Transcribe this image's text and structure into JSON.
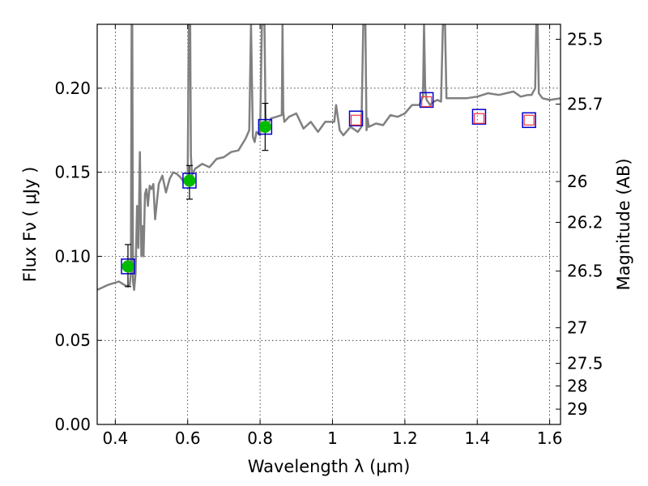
{
  "chart_data": {
    "type": "line",
    "title": "",
    "xlabel": "Wavelength  λ (μm)",
    "ylabel": "Flux  Fν  ( μJy )",
    "ylabel_right": "Magnitude (AB)",
    "xlim": [
      0.35,
      1.63
    ],
    "ylim": [
      0.0,
      0.238
    ],
    "grid": true,
    "x_ticks": [
      0.4,
      0.6,
      0.8,
      1.0,
      1.2,
      1.4,
      1.6
    ],
    "x_tick_labels": [
      "0.4",
      "0.6",
      "0.8",
      "1",
      "1.2",
      "1.4",
      "1.6"
    ],
    "y_ticks": [
      0.0,
      0.05,
      0.1,
      0.15,
      0.2
    ],
    "y_tick_labels": [
      "0.00",
      "0.05",
      "0.10",
      "0.15",
      "0.20"
    ],
    "right_ticks": [
      {
        "label": "25.5",
        "flux": 0.2291
      },
      {
        "label": "25.7",
        "flux": 0.1905
      },
      {
        "label": "26",
        "flux": 0.1445
      },
      {
        "label": "26.2",
        "flux": 0.1202
      },
      {
        "label": "26.5",
        "flux": 0.0912
      },
      {
        "label": "27",
        "flux": 0.0575
      },
      {
        "label": "27.5",
        "flux": 0.0363
      },
      {
        "label": "28",
        "flux": 0.0229
      },
      {
        "label": "29",
        "flux": 0.0091
      }
    ],
    "series": [
      {
        "name": "",
        "type": "line",
        "color": "#808080",
        "x": [
          0.35,
          0.38,
          0.41,
          0.425,
          0.435,
          0.44,
          0.443,
          0.445,
          0.447,
          0.449,
          0.452,
          0.456,
          0.46,
          0.464,
          0.468,
          0.472,
          0.475,
          0.478,
          0.482,
          0.486,
          0.49,
          0.495,
          0.5,
          0.505,
          0.51,
          0.52,
          0.53,
          0.54,
          0.55,
          0.56,
          0.57,
          0.58,
          0.59,
          0.6,
          0.603,
          0.605,
          0.607,
          0.609,
          0.612,
          0.62,
          0.64,
          0.66,
          0.68,
          0.7,
          0.72,
          0.74,
          0.76,
          0.77,
          0.775,
          0.78,
          0.785,
          0.79,
          0.8,
          0.805,
          0.808,
          0.81,
          0.812,
          0.815,
          0.818,
          0.821,
          0.83,
          0.845,
          0.86,
          0.862,
          0.864,
          0.867,
          0.88,
          0.9,
          0.92,
          0.94,
          0.96,
          0.98,
          1.0,
          1.005,
          1.01,
          1.02,
          1.03,
          1.05,
          1.07,
          1.08,
          1.085,
          1.088,
          1.091,
          1.094,
          1.097,
          1.1,
          1.12,
          1.14,
          1.16,
          1.18,
          1.2,
          1.22,
          1.24,
          1.25,
          1.253,
          1.256,
          1.26,
          1.27,
          1.28,
          1.29,
          1.3,
          1.305,
          1.308,
          1.311,
          1.315,
          1.34,
          1.37,
          1.4,
          1.43,
          1.46,
          1.5,
          1.52,
          1.54,
          1.55,
          1.56,
          1.563,
          1.567,
          1.57,
          1.58,
          1.6,
          1.63
        ],
        "y": [
          0.08,
          0.083,
          0.085,
          0.083,
          0.082,
          0.083,
          0.09,
          0.238,
          0.238,
          0.085,
          0.08,
          0.09,
          0.13,
          0.105,
          0.162,
          0.1,
          0.118,
          0.1,
          0.137,
          0.14,
          0.13,
          0.142,
          0.14,
          0.143,
          0.122,
          0.143,
          0.148,
          0.138,
          0.146,
          0.15,
          0.149,
          0.147,
          0.144,
          0.147,
          0.238,
          0.238,
          0.238,
          0.16,
          0.148,
          0.152,
          0.155,
          0.153,
          0.158,
          0.159,
          0.162,
          0.163,
          0.17,
          0.175,
          0.238,
          0.171,
          0.168,
          0.174,
          0.172,
          0.238,
          0.238,
          0.238,
          0.238,
          0.185,
          0.176,
          0.178,
          0.182,
          0.183,
          0.184,
          0.238,
          0.186,
          0.18,
          0.183,
          0.185,
          0.176,
          0.18,
          0.174,
          0.18,
          0.18,
          0.18,
          0.19,
          0.175,
          0.172,
          0.177,
          0.174,
          0.177,
          0.238,
          0.238,
          0.238,
          0.175,
          0.182,
          0.177,
          0.179,
          0.178,
          0.184,
          0.183,
          0.185,
          0.19,
          0.19,
          0.195,
          0.238,
          0.2,
          0.193,
          0.19,
          0.192,
          0.193,
          0.192,
          0.238,
          0.238,
          0.238,
          0.194,
          0.194,
          0.194,
          0.195,
          0.197,
          0.196,
          0.198,
          0.195,
          0.196,
          0.196,
          0.2,
          0.238,
          0.238,
          0.197,
          0.194,
          0.193,
          0.194
        ]
      },
      {
        "name": "",
        "type": "scatter",
        "marker": "open-square",
        "edge_color": "#0000cc",
        "points": [
          {
            "x": 0.435,
            "y": 0.094
          },
          {
            "x": 0.605,
            "y": 0.145
          },
          {
            "x": 0.814,
            "y": 0.177
          },
          {
            "x": 1.065,
            "y": 0.182
          },
          {
            "x": 1.26,
            "y": 0.193
          },
          {
            "x": 1.405,
            "y": 0.183
          },
          {
            "x": 1.543,
            "y": 0.181
          }
        ]
      },
      {
        "name": "",
        "type": "scatter",
        "marker": "filled-circle",
        "color": "#00bb00",
        "error_bars": true,
        "points": [
          {
            "x": 0.435,
            "y": 0.094,
            "ylo": 0.082,
            "yhi": 0.107
          },
          {
            "x": 0.605,
            "y": 0.145,
            "ylo": 0.134,
            "yhi": 0.154
          },
          {
            "x": 0.814,
            "y": 0.177,
            "ylo": 0.163,
            "yhi": 0.191
          }
        ]
      },
      {
        "name": "",
        "type": "scatter",
        "marker": "open-square-small",
        "edge_color": "#ff3333",
        "points": [
          {
            "x": 1.065,
            "y": 0.181
          },
          {
            "x": 1.26,
            "y": 0.192
          },
          {
            "x": 1.405,
            "y": 0.182
          },
          {
            "x": 1.543,
            "y": 0.181
          }
        ]
      }
    ]
  }
}
